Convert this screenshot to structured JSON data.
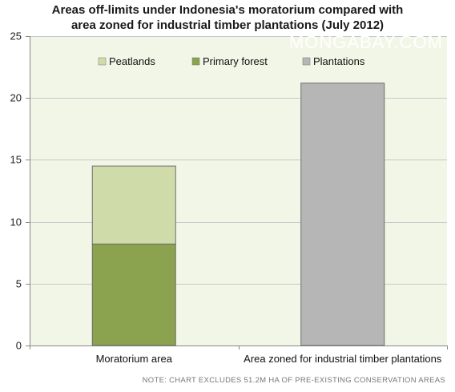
{
  "chart_data": {
    "type": "bar",
    "stacked": true,
    "title_lines": [
      "Areas off-limits under Indonesia's moratorium compared with",
      "area zoned for industrial timber plantations (July 2012)"
    ],
    "categories": [
      "Moratorium area",
      "Area zoned for industrial timber plantations"
    ],
    "series": [
      {
        "name": "Primary forest",
        "values": [
          8.2,
          0
        ],
        "color": "#8ba24e"
      },
      {
        "name": "Peatlands",
        "values": [
          6.3,
          0
        ],
        "color": "#cfdcaa"
      },
      {
        "name": "Plantations",
        "values": [
          0,
          21.2
        ],
        "color": "#b6b6b6"
      }
    ],
    "legend_order": [
      "Peatlands",
      "Primary forest",
      "Plantations"
    ],
    "ylim": [
      0,
      25
    ],
    "yticks": [
      0,
      5,
      10,
      15,
      20,
      25
    ],
    "grid": true,
    "legend_position": "top",
    "plot_background": "#f2f6e7",
    "watermark": "MONGABAY.COM",
    "note": "NOTE: CHART EXCLUDES 51.2M HA OF PRE-EXISTING CONSERVATION AREAS"
  }
}
